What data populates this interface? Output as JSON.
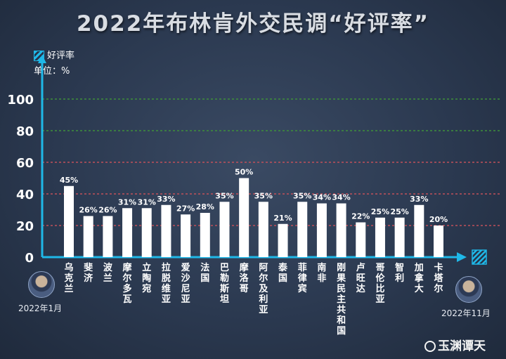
{
  "title": "2022年布林肯外交民调“好评率”",
  "legend": {
    "label": "好评率",
    "unit": "单位：%"
  },
  "start_label": "2022年1月",
  "end_label": "2022年11月",
  "brand": "玉渊谭天",
  "colors": {
    "background": "#2b3950",
    "axis": "#1fb8e8",
    "bar": "#ffffff",
    "grid_high": "#3f8f3a",
    "grid_low": "#c0505a"
  },
  "chart_data": {
    "type": "bar",
    "ylim": [
      0,
      100
    ],
    "yticks": [
      0,
      20,
      40,
      60,
      80,
      100
    ],
    "categories": [
      "乌克兰",
      "斐济",
      "波兰",
      "摩尔多瓦",
      "立陶宛",
      "拉脱维亚",
      "爱沙尼亚",
      "法国",
      "巴勒斯坦",
      "摩洛哥",
      "阿尔及利亚",
      "泰国",
      "菲律宾",
      "南非",
      "刚果民主共和国",
      "卢旺达",
      "哥伦比亚",
      "智利",
      "加拿大",
      "卡塔尔"
    ],
    "values": [
      45,
      26,
      26,
      31,
      31,
      33,
      27,
      28,
      35,
      50,
      35,
      21,
      35,
      34,
      34,
      22,
      25,
      25,
      33,
      20
    ],
    "value_labels": [
      "45%",
      "26%",
      "26%",
      "31%",
      "31%",
      "33%",
      "27%",
      "28%",
      "35%",
      "50%",
      "35%",
      "21%",
      "35%",
      "34%",
      "34%",
      "22%",
      "25%",
      "25%",
      "33%",
      "20%"
    ],
    "grid": true
  }
}
